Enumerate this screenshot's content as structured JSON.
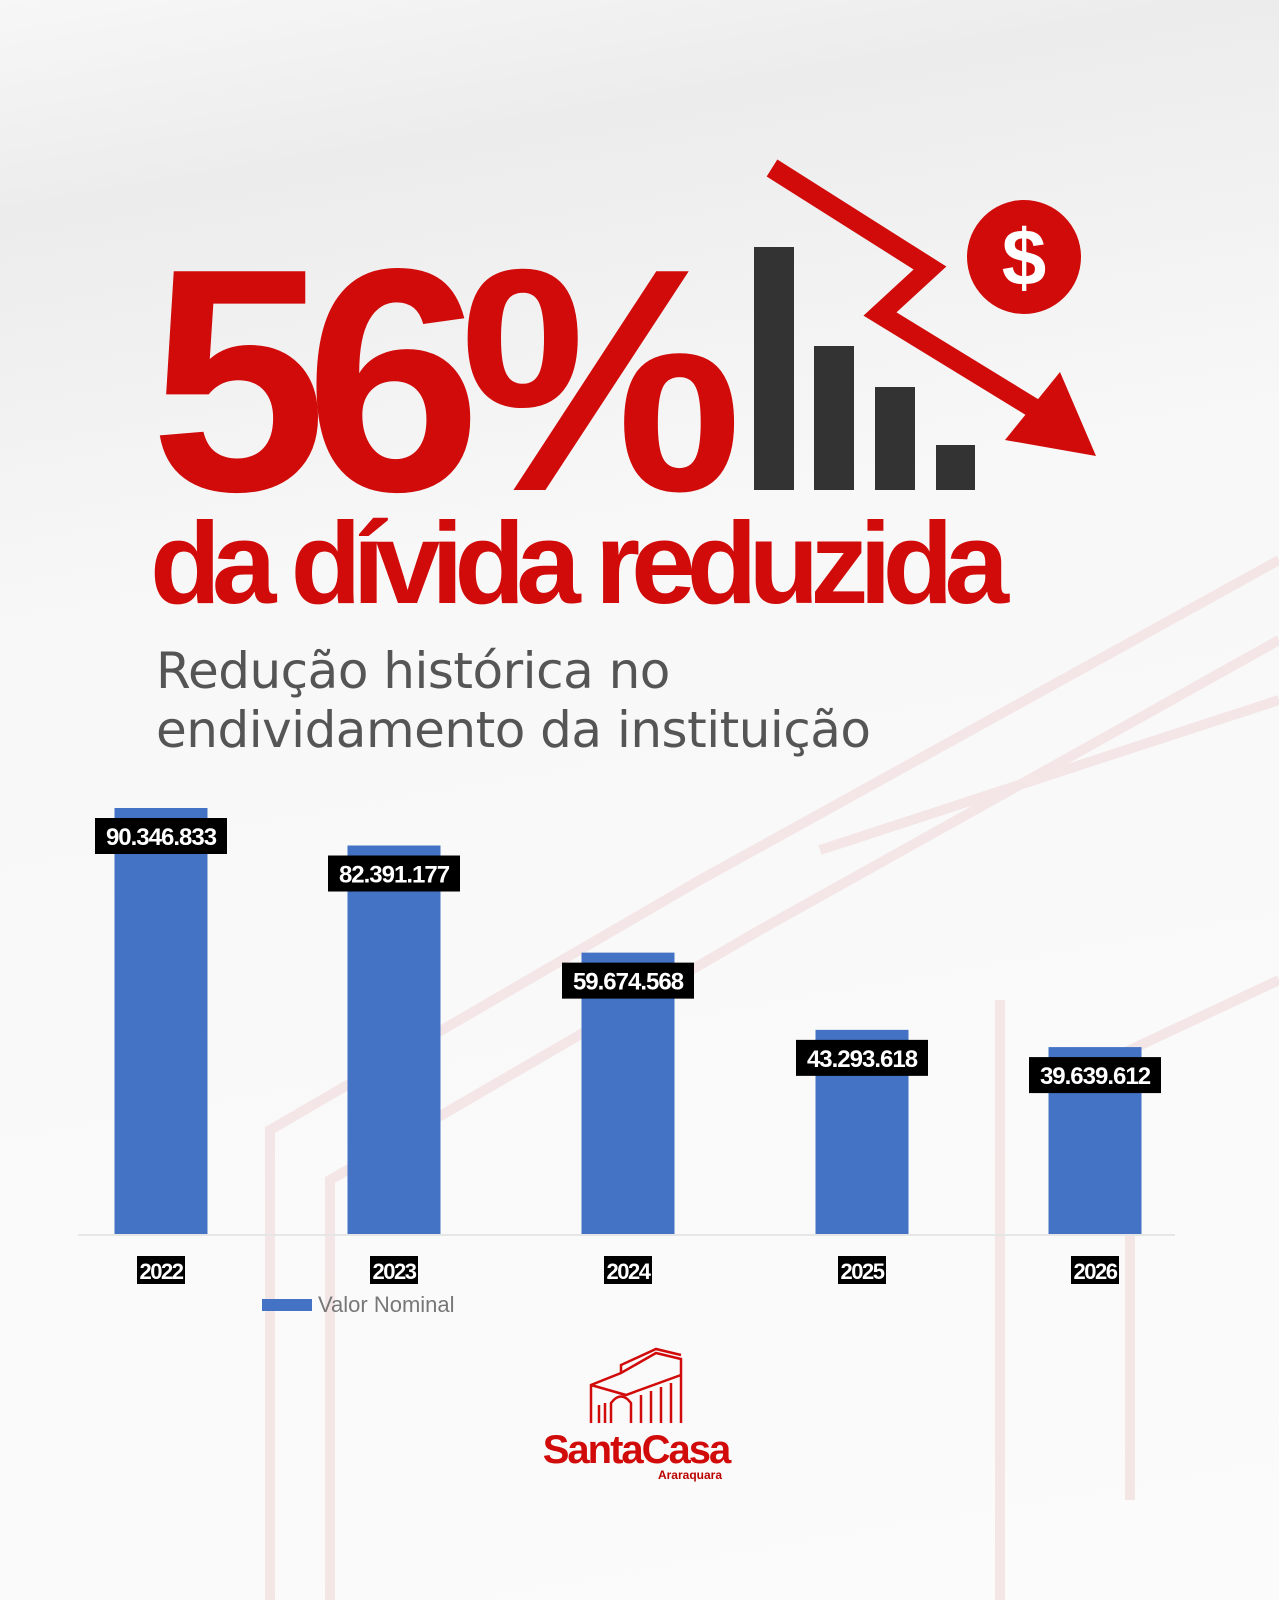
{
  "headline": {
    "percent": "56%",
    "text": "da dívida reduzida"
  },
  "subtitle": [
    "Redução histórica no",
    "endividamento da instituição"
  ],
  "icon": {
    "name": "declining-bars-dollar-icon",
    "symbol": "$"
  },
  "colors": {
    "accent": "#d10a0a",
    "bar": "#4472c4",
    "dark": "#333333"
  },
  "chart_data": {
    "type": "bar",
    "title": "",
    "xlabel": "",
    "ylabel": "",
    "categories": [
      "2022",
      "2023",
      "2024",
      "2025",
      "2026"
    ],
    "series": [
      {
        "name": "Valor Nominal",
        "values": [
          90346833,
          82391177,
          59674568,
          43293618,
          39639612
        ]
      }
    ],
    "data_labels": [
      "90.346.833",
      "82.391.177",
      "59.674.568",
      "43.293.618",
      "39.639.612"
    ],
    "ylim": [
      0,
      90346833
    ],
    "grid": false,
    "legend": "bottom-left"
  },
  "logo": {
    "name": "SantaCasa",
    "city": "Araraquara"
  }
}
